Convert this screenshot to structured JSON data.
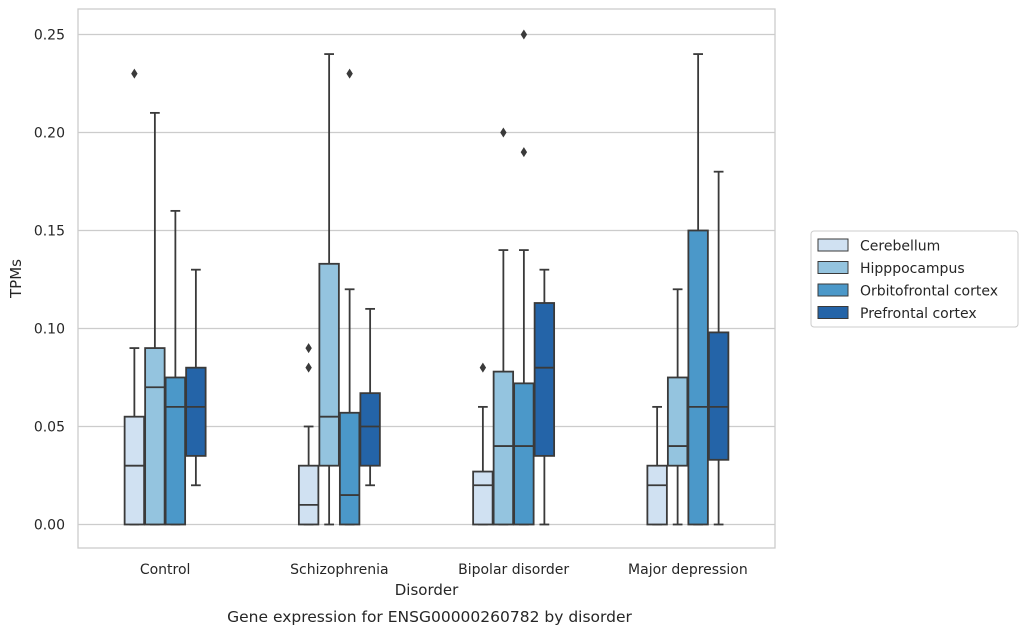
{
  "chart_data": {
    "type": "box",
    "xlabel": "Disorder",
    "ylabel": "TPMs",
    "caption": "Gene expression for ENSG00000260782 by disorder",
    "ylim": [
      -0.012,
      0.263
    ],
    "yticks": [
      0.0,
      0.05,
      0.1,
      0.15,
      0.2,
      0.25
    ],
    "ytick_labels": [
      "0.00",
      "0.05",
      "0.10",
      "0.15",
      "0.20",
      "0.25"
    ],
    "grid": "horizontal",
    "legend_position": "right",
    "categories": [
      "Control",
      "Schizophrenia",
      "Bipolar disorder",
      "Major depression"
    ],
    "series": [
      {
        "name": "Cerebellum",
        "color": "#d0e1f2",
        "boxes": [
          {
            "min": 0.0,
            "q1": 0.0,
            "median": 0.03,
            "q3": 0.055,
            "max": 0.09,
            "outliers": [
              0.23
            ]
          },
          {
            "min": 0.0,
            "q1": 0.0,
            "median": 0.01,
            "q3": 0.03,
            "max": 0.05,
            "outliers": [
              0.08,
              0.09
            ]
          },
          {
            "min": 0.0,
            "q1": 0.0,
            "median": 0.02,
            "q3": 0.027,
            "max": 0.06,
            "outliers": [
              0.08
            ]
          },
          {
            "min": 0.0,
            "q1": 0.0,
            "median": 0.02,
            "q3": 0.03,
            "max": 0.06,
            "outliers": []
          }
        ]
      },
      {
        "name": "Hipppocampus",
        "color": "#94c4df",
        "boxes": [
          {
            "min": 0.0,
            "q1": 0.0,
            "median": 0.07,
            "q3": 0.09,
            "max": 0.21,
            "outliers": []
          },
          {
            "min": 0.0,
            "q1": 0.03,
            "median": 0.055,
            "q3": 0.133,
            "max": 0.24,
            "outliers": []
          },
          {
            "min": 0.0,
            "q1": 0.0,
            "median": 0.04,
            "q3": 0.078,
            "max": 0.14,
            "outliers": [
              0.2
            ]
          },
          {
            "min": 0.0,
            "q1": 0.03,
            "median": 0.04,
            "q3": 0.075,
            "max": 0.12,
            "outliers": []
          }
        ]
      },
      {
        "name": "Orbitofrontal cortex",
        "color": "#4b98c9",
        "boxes": [
          {
            "min": 0.0,
            "q1": 0.0,
            "median": 0.06,
            "q3": 0.075,
            "max": 0.16,
            "outliers": []
          },
          {
            "min": 0.0,
            "q1": 0.0,
            "median": 0.015,
            "q3": 0.057,
            "max": 0.12,
            "outliers": [
              0.23
            ]
          },
          {
            "min": 0.0,
            "q1": 0.0,
            "median": 0.04,
            "q3": 0.072,
            "max": 0.14,
            "outliers": [
              0.19,
              0.25
            ]
          },
          {
            "min": 0.0,
            "q1": 0.0,
            "median": 0.06,
            "q3": 0.15,
            "max": 0.24,
            "outliers": []
          }
        ]
      },
      {
        "name": "Prefrontal cortex",
        "color": "#2464a8",
        "boxes": [
          {
            "min": 0.02,
            "q1": 0.035,
            "median": 0.06,
            "q3": 0.08,
            "max": 0.13,
            "outliers": []
          },
          {
            "min": 0.02,
            "q1": 0.03,
            "median": 0.05,
            "q3": 0.067,
            "max": 0.11,
            "outliers": []
          },
          {
            "min": 0.0,
            "q1": 0.035,
            "median": 0.08,
            "q3": 0.113,
            "max": 0.13,
            "outliers": []
          },
          {
            "min": 0.0,
            "q1": 0.033,
            "median": 0.06,
            "q3": 0.098,
            "max": 0.18,
            "outliers": []
          }
        ]
      }
    ]
  }
}
